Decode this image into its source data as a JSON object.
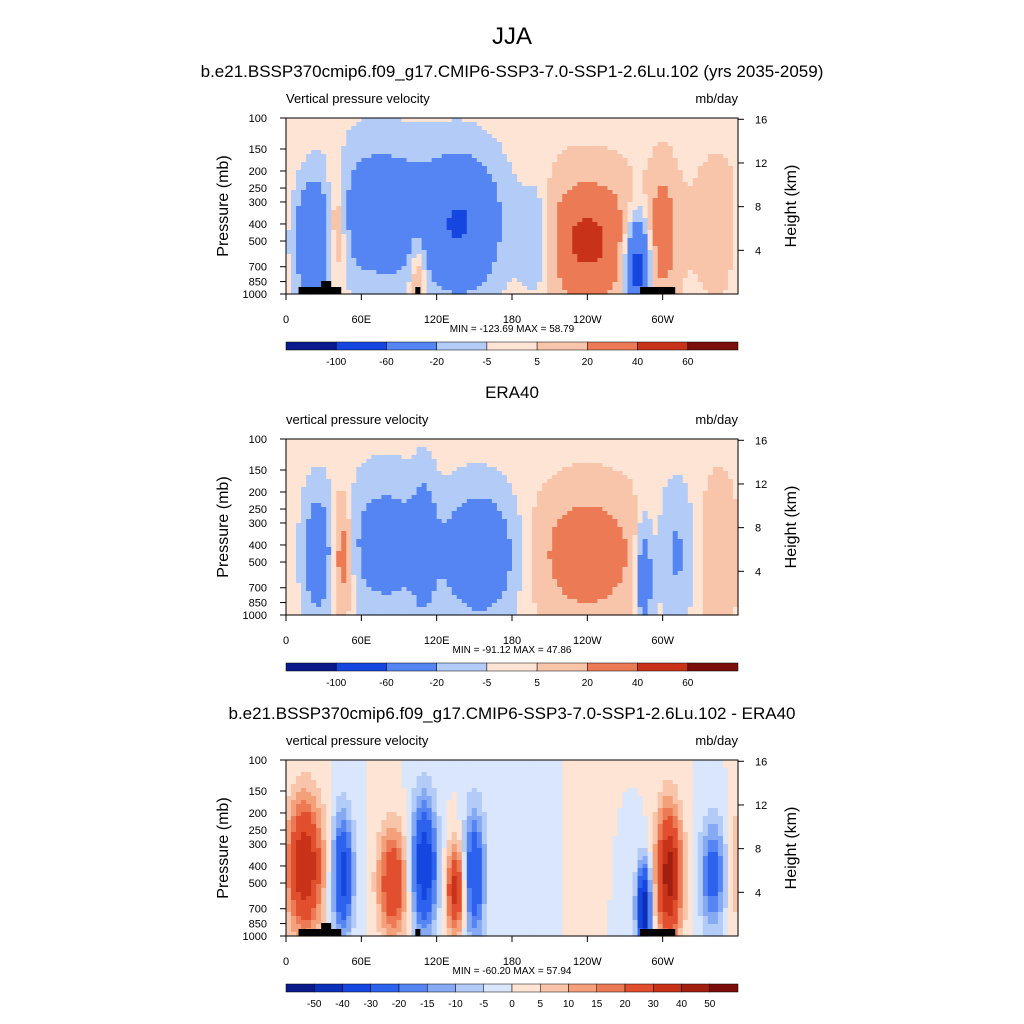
{
  "figure": {
    "title": "JJA"
  },
  "colors": {
    "axis": "#000000",
    "land": "#000000",
    "main_scale": [
      "#0a1a8a",
      "#0c2fb8",
      "#1547e0",
      "#2c62ee",
      "#5585f2",
      "#86a9f4",
      "#b3cbf7",
      "#d9e6fb",
      "#fde4d4",
      "#f8c5aa",
      "#f3a07b",
      "#ec7a55",
      "#e24f2e",
      "#c83218",
      "#a21f10",
      "#7b0d0a"
    ],
    "diff_scale": [
      "#0a1a8a",
      "#0c2fb8",
      "#1547e0",
      "#2c62ee",
      "#5585f2",
      "#86a9f4",
      "#b3cbf7",
      "#d9e6fb",
      "#fde4d4",
      "#f8c5aa",
      "#f3a07b",
      "#ec7a55",
      "#e24f2e",
      "#c83218",
      "#a21f10",
      "#7b0d0a"
    ]
  },
  "chart_data": [
    {
      "type": "heatmap",
      "title": "b.e21.BSSP370cmip6.f09_g17.CMIP6-SSP3-7.0-SSP1-2.6Lu.102 (yrs 2035-2059)",
      "left_label": "Vertical pressure velocity",
      "right_label": "mb/day",
      "ylabel": "Pressure (mb)",
      "ylabel_right": "Height (km)",
      "x_ticks": [
        "0",
        "60E",
        "120E",
        "180",
        "120W",
        "60W"
      ],
      "x_tick_lon": [
        0,
        60,
        120,
        180,
        240,
        300
      ],
      "xlim": [
        0,
        360
      ],
      "y_ticks": [
        "100",
        "150",
        "200",
        "250",
        "300",
        "400",
        "500",
        "700",
        "850",
        "1000"
      ],
      "y_tick_p": [
        100,
        150,
        200,
        250,
        300,
        400,
        500,
        700,
        850,
        1000
      ],
      "ylim": [
        1000,
        100
      ],
      "y_right_ticks": [
        "16",
        "12",
        "8",
        "4"
      ],
      "y_right_km": [
        16,
        12,
        8,
        4
      ],
      "stats": "MIN = -123.69  MAX =  58.79",
      "colorbar_labels": [
        "-100",
        "-60",
        "-20",
        "-5",
        "5",
        "20",
        "40",
        "60"
      ],
      "colorbar_levels": [
        -100,
        -60,
        -20,
        -5,
        5,
        20,
        40,
        60
      ],
      "min": -123.69,
      "max": 58.79,
      "features": [
        {
          "lon": 20,
          "p": 500,
          "amp": -55,
          "wlon": 10,
          "wp": 0.5
        },
        {
          "lon": 40,
          "p": 400,
          "amp": 35,
          "wlon": 6,
          "wp": 0.55
        },
        {
          "lon": 75,
          "p": 350,
          "amp": -45,
          "wlon": 28,
          "wp": 0.6
        },
        {
          "lon": 105,
          "p": 700,
          "amp": 30,
          "wlon": 5,
          "wp": 0.4
        },
        {
          "lon": 140,
          "p": 400,
          "amp": -60,
          "wlon": 22,
          "wp": 0.6
        },
        {
          "lon": 200,
          "p": 500,
          "amp": -30,
          "wlon": 10,
          "wp": 0.5
        },
        {
          "lon": 240,
          "p": 500,
          "amp": 45,
          "wlon": 28,
          "wp": 0.6
        },
        {
          "lon": 280,
          "p": 700,
          "amp": -85,
          "wlon": 7,
          "wp": 0.45
        },
        {
          "lon": 300,
          "p": 450,
          "amp": 30,
          "wlon": 8,
          "wp": 0.6
        },
        {
          "lon": 345,
          "p": 400,
          "amp": 10,
          "wlon": 20,
          "wp": 0.8
        }
      ]
    },
    {
      "type": "heatmap",
      "title": "ERA40",
      "left_label": "vertical pressure velocity",
      "right_label": "mb/day",
      "ylabel": "Pressure (mb)",
      "ylabel_right": "Height (km)",
      "x_ticks": [
        "0",
        "60E",
        "120E",
        "180",
        "120W",
        "60W"
      ],
      "x_tick_lon": [
        0,
        60,
        120,
        180,
        240,
        300
      ],
      "xlim": [
        0,
        360
      ],
      "y_ticks": [
        "100",
        "150",
        "200",
        "250",
        "300",
        "400",
        "500",
        "700",
        "850",
        "1000"
      ],
      "y_tick_p": [
        100,
        150,
        200,
        250,
        300,
        400,
        500,
        700,
        850,
        1000
      ],
      "ylim": [
        1000,
        100
      ],
      "y_right_ticks": [
        "16",
        "12",
        "8",
        "4"
      ],
      "y_right_km": [
        16,
        12,
        8,
        4
      ],
      "stats": "MIN = -91.12  MAX =  47.86",
      "colorbar_labels": [
        "-100",
        "-60",
        "-20",
        "-5",
        "5",
        "20",
        "40",
        "60"
      ],
      "colorbar_levels": [
        -100,
        -60,
        -20,
        -5,
        5,
        20,
        40,
        60
      ],
      "min": -91.12,
      "max": 47.86,
      "features": [
        {
          "lon": 25,
          "p": 450,
          "amp": -40,
          "wlon": 8,
          "wp": 0.55
        },
        {
          "lon": 45,
          "p": 450,
          "amp": 40,
          "wlon": 6,
          "wp": 0.55
        },
        {
          "lon": 80,
          "p": 400,
          "amp": -35,
          "wlon": 25,
          "wp": 0.6
        },
        {
          "lon": 110,
          "p": 400,
          "amp": -30,
          "wlon": 6,
          "wp": 0.6
        },
        {
          "lon": 155,
          "p": 450,
          "amp": -50,
          "wlon": 20,
          "wp": 0.55
        },
        {
          "lon": 240,
          "p": 450,
          "amp": 35,
          "wlon": 30,
          "wp": 0.6
        },
        {
          "lon": 285,
          "p": 600,
          "amp": -45,
          "wlon": 5,
          "wp": 0.5
        },
        {
          "lon": 310,
          "p": 450,
          "amp": -25,
          "wlon": 10,
          "wp": 0.6
        },
        {
          "lon": 345,
          "p": 450,
          "amp": 20,
          "wlon": 10,
          "wp": 0.7
        }
      ]
    },
    {
      "type": "heatmap",
      "title": "b.e21.BSSP370cmip6.f09_g17.CMIP6-SSP3-7.0-SSP1-2.6Lu.102 - ERA40",
      "left_label": "vertical pressure velocity",
      "right_label": "mb/day",
      "ylabel": "Pressure (mb)",
      "ylabel_right": "Height (km)",
      "x_ticks": [
        "0",
        "60E",
        "120E",
        "180",
        "120W",
        "60W"
      ],
      "x_tick_lon": [
        0,
        60,
        120,
        180,
        240,
        300
      ],
      "xlim": [
        0,
        360
      ],
      "y_ticks": [
        "100",
        "150",
        "200",
        "250",
        "300",
        "400",
        "500",
        "700",
        "850",
        "1000"
      ],
      "y_tick_p": [
        100,
        150,
        200,
        250,
        300,
        400,
        500,
        700,
        850,
        1000
      ],
      "ylim": [
        1000,
        100
      ],
      "y_right_ticks": [
        "16",
        "12",
        "8",
        "4"
      ],
      "y_right_km": [
        16,
        12,
        8,
        4
      ],
      "stats": "MIN = -60.20  MAX =  57.94",
      "colorbar_labels": [
        "-50",
        "-40",
        "-30",
        "-20",
        "-15",
        "-10",
        "-5",
        "0",
        "5",
        "10",
        "15",
        "20",
        "30",
        "40",
        "50"
      ],
      "colorbar_levels": [
        -50,
        -40,
        -30,
        -20,
        -15,
        -10,
        -5,
        0,
        5,
        10,
        15,
        20,
        30,
        40,
        50
      ],
      "min": -60.2,
      "max": 57.94,
      "features": [
        {
          "lon": 15,
          "p": 400,
          "amp": 40,
          "wlon": 10,
          "wp": 0.6
        },
        {
          "lon": 45,
          "p": 450,
          "amp": -35,
          "wlon": 6,
          "wp": 0.55
        },
        {
          "lon": 85,
          "p": 500,
          "amp": 30,
          "wlon": 8,
          "wp": 0.5
        },
        {
          "lon": 110,
          "p": 400,
          "amp": -40,
          "wlon": 7,
          "wp": 0.6
        },
        {
          "lon": 135,
          "p": 550,
          "amp": 35,
          "wlon": 5,
          "wp": 0.4
        },
        {
          "lon": 150,
          "p": 450,
          "amp": -30,
          "wlon": 6,
          "wp": 0.6
        },
        {
          "lon": 285,
          "p": 700,
          "amp": -50,
          "wlon": 4,
          "wp": 0.4
        },
        {
          "lon": 305,
          "p": 450,
          "amp": 45,
          "wlon": 7,
          "wp": 0.6
        },
        {
          "lon": 340,
          "p": 450,
          "amp": -25,
          "wlon": 7,
          "wp": 0.5
        }
      ]
    }
  ]
}
